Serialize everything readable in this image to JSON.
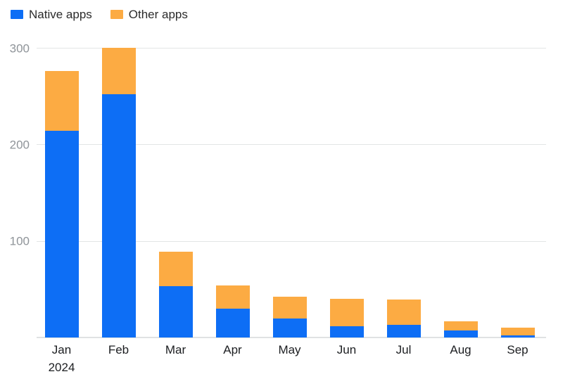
{
  "chart_data": {
    "type": "bar",
    "stacked": true,
    "title": "",
    "xlabel": "",
    "ylabel": "",
    "categories": [
      "Jan",
      "Feb",
      "Mar",
      "Apr",
      "May",
      "Jun",
      "Jul",
      "Aug",
      "Sep"
    ],
    "category_sublabels": [
      "2024",
      "",
      "",
      "",
      "",
      "",
      "",
      "",
      ""
    ],
    "series": [
      {
        "name": "Native apps",
        "color": "#0d6ef5",
        "values": [
          214,
          252,
          53,
          30,
          20,
          12,
          13,
          7,
          2
        ]
      },
      {
        "name": "Other apps",
        "color": "#fcab43",
        "values": [
          62,
          48,
          36,
          24,
          22,
          28,
          26,
          10,
          8
        ]
      }
    ],
    "totals": [
      276,
      300,
      89,
      54,
      42,
      40,
      39,
      17,
      10
    ],
    "ylim": [
      0,
      300
    ],
    "yticks": [
      100,
      200,
      300
    ],
    "grid": true,
    "legend_position": "top-left",
    "colors": {
      "gridline": "#e3e5e6",
      "axis_tick_text": "#8f9499",
      "category_text": "#1c1e21"
    }
  }
}
